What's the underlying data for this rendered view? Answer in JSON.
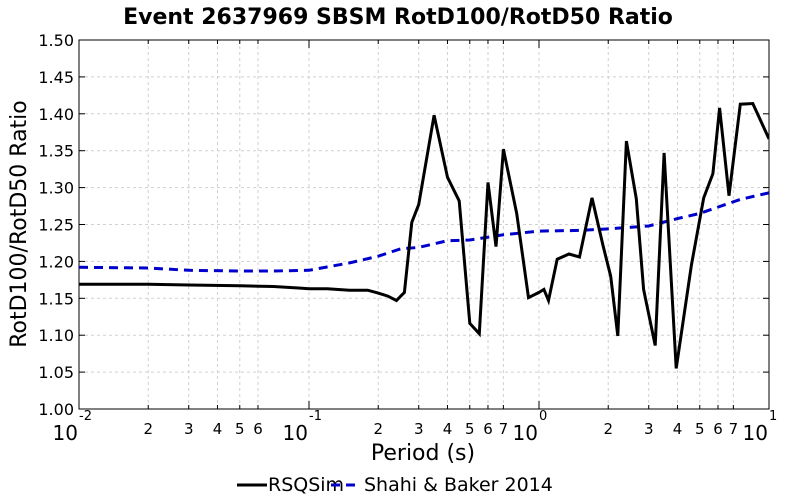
{
  "chart_data": {
    "type": "line",
    "title": "Event 2637969 SBSM RotD100/RotD50 Ratio",
    "xlabel": "Period (s)",
    "ylabel": "RotD100/RotD50 Ratio",
    "x_scale": "log",
    "xlim": [
      0.01,
      10
    ],
    "ylim": [
      1.0,
      1.5
    ],
    "grid": true,
    "legend_position": "bottom",
    "y_ticks": [
      "1.00",
      "1.05",
      "1.10",
      "1.15",
      "1.20",
      "1.25",
      "1.30",
      "1.35",
      "1.40",
      "1.45",
      "1.50"
    ],
    "x_major_ticks": [
      {
        "value": 0.01,
        "base": "10",
        "exp": "-2"
      },
      {
        "value": 0.1,
        "base": "10",
        "exp": "-1"
      },
      {
        "value": 1,
        "base": "10",
        "exp": "0"
      },
      {
        "value": 10,
        "base": "10",
        "exp": "1"
      }
    ],
    "x_minor_ticks": [
      {
        "value": 0.02,
        "label": "2"
      },
      {
        "value": 0.03,
        "label": "3"
      },
      {
        "value": 0.04,
        "label": "4"
      },
      {
        "value": 0.05,
        "label": "5"
      },
      {
        "value": 0.06,
        "label": "6"
      },
      {
        "value": 0.2,
        "label": "2"
      },
      {
        "value": 0.3,
        "label": "3"
      },
      {
        "value": 0.4,
        "label": "4"
      },
      {
        "value": 0.5,
        "label": "5"
      },
      {
        "value": 0.6,
        "label": "6"
      },
      {
        "value": 0.7,
        "label": "7"
      },
      {
        "value": 2,
        "label": "2"
      },
      {
        "value": 3,
        "label": "3"
      },
      {
        "value": 4,
        "label": "4"
      },
      {
        "value": 5,
        "label": "5"
      },
      {
        "value": 6,
        "label": "6"
      },
      {
        "value": 7,
        "label": "7"
      }
    ],
    "series": [
      {
        "name": "RSQSim",
        "color": "#000000",
        "dash": "solid",
        "x": [
          0.01,
          0.02,
          0.03,
          0.05,
          0.07,
          0.09,
          0.1,
          0.12,
          0.15,
          0.18,
          0.2,
          0.22,
          0.24,
          0.26,
          0.28,
          0.3,
          0.35,
          0.4,
          0.45,
          0.5,
          0.55,
          0.6,
          0.65,
          0.7,
          0.8,
          0.9,
          1.0,
          1.05,
          1.1,
          1.2,
          1.35,
          1.5,
          1.7,
          1.9,
          2.05,
          2.2,
          2.4,
          2.65,
          2.85,
          3.2,
          3.5,
          3.95,
          4.6,
          5.2,
          5.7,
          6.1,
          6.7,
          7.5,
          8.5,
          10
        ],
        "values": [
          1.169,
          1.169,
          1.168,
          1.167,
          1.166,
          1.164,
          1.163,
          1.163,
          1.161,
          1.161,
          1.157,
          1.153,
          1.147,
          1.158,
          1.253,
          1.277,
          1.398,
          1.314,
          1.282,
          1.116,
          1.102,
          1.307,
          1.22,
          1.352,
          1.265,
          1.151,
          1.158,
          1.162,
          1.147,
          1.203,
          1.21,
          1.206,
          1.286,
          1.221,
          1.18,
          1.099,
          1.363,
          1.285,
          1.162,
          1.086,
          1.347,
          1.055,
          1.195,
          1.286,
          1.319,
          1.408,
          1.289,
          1.413,
          1.414,
          1.366
        ]
      },
      {
        "name": "Shahi & Baker 2014",
        "color": "#0000cc",
        "dash": "dashed",
        "x": [
          0.01,
          0.02,
          0.03,
          0.05,
          0.07,
          0.1,
          0.15,
          0.2,
          0.25,
          0.3,
          0.4,
          0.5,
          0.7,
          1.0,
          1.5,
          2.0,
          3.0,
          4.0,
          5.0,
          7.5,
          10
        ],
        "values": [
          1.192,
          1.191,
          1.188,
          1.187,
          1.187,
          1.188,
          1.198,
          1.207,
          1.217,
          1.219,
          1.228,
          1.229,
          1.236,
          1.241,
          1.242,
          1.244,
          1.248,
          1.258,
          1.265,
          1.284,
          1.293
        ]
      }
    ]
  }
}
